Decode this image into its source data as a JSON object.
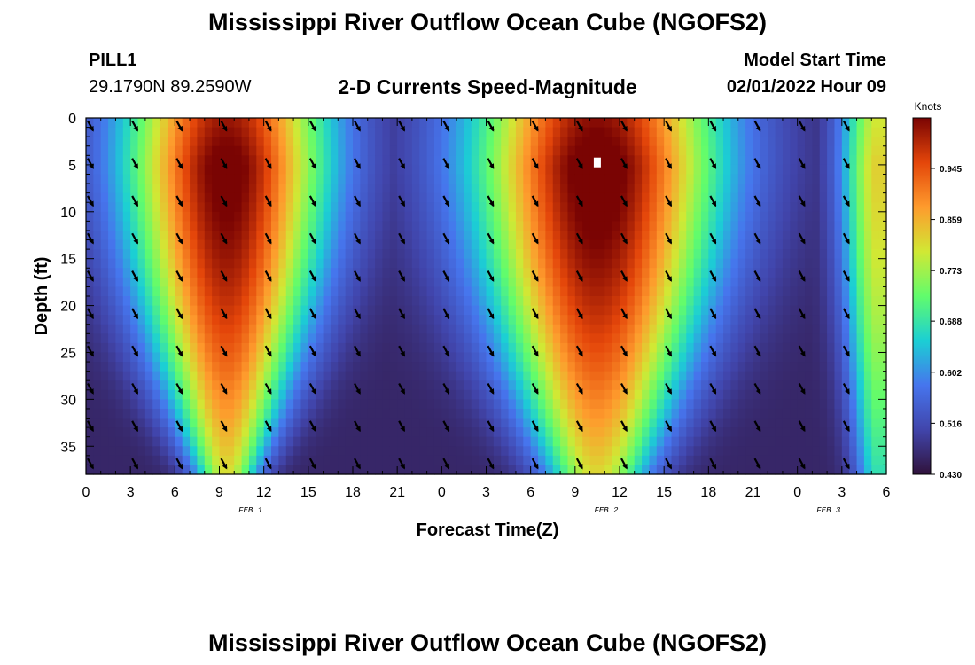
{
  "header": {
    "title": "Mississippi River Outflow Ocean Cube (NGOFS2)",
    "station": "PILL1",
    "coords": "29.1790N  89.2590W",
    "subtitle": "2-D Currents Speed-Magnitude",
    "model_start_label": "Model Start Time",
    "model_start_value": "02/01/2022 Hour 09"
  },
  "footer": {
    "title": "Mississippi River Outflow Ocean Cube (NGOFS2)"
  },
  "chart_data": {
    "type": "heatmap",
    "xlabel": "Forecast Time(Z)",
    "ylabel": "Depth (ft)",
    "x_tick_labels": [
      "0",
      "3",
      "6",
      "9",
      "12",
      "15",
      "18",
      "21",
      "0",
      "3",
      "6",
      "9",
      "12",
      "15",
      "18",
      "21",
      "0",
      "3",
      "6"
    ],
    "date_labels": [
      {
        "label": "FEB 1",
        "at_tick": 3.7
      },
      {
        "label": "FEB 2",
        "at_tick": 11.7
      },
      {
        "label": "FEB 3",
        "at_tick": 16.7
      }
    ],
    "y_ticks": [
      0,
      5,
      10,
      15,
      20,
      25,
      30,
      35
    ],
    "ylim": [
      38,
      0
    ],
    "xlim_hours": [
      0,
      54
    ],
    "colorbar": {
      "unit_label": "Knots",
      "tick_labels": [
        "0.945",
        "0.859",
        "0.773",
        "0.688",
        "0.602",
        "0.516",
        "0.430"
      ],
      "range": [
        0.43,
        1.03
      ],
      "colormap": [
        "#30123b",
        "#4145ab",
        "#4675ed",
        "#1bcfd4",
        "#61fc6c",
        "#d1e834",
        "#fe9b2d",
        "#e4460a",
        "#7a0403"
      ]
    },
    "speed_model": {
      "min": 0.43,
      "max": 1.03,
      "peaks": [
        {
          "hour": 9.5,
          "amplitude": 0.98,
          "halfwidth_surface": 6.8,
          "halfwidth_bottom": 2.2
        },
        {
          "hour": 34.5,
          "amplitude": 1.0,
          "halfwidth_surface": 8.3,
          "halfwidth_bottom": 3.5
        },
        {
          "hour": 53.5,
          "amplitude": 0.62,
          "halfwidth_surface": 2.6,
          "halfwidth_bottom": 1.6
        }
      ],
      "depth_profile": {
        "surface_factor": 0.93,
        "max_depth_ft": 5,
        "bottom_factor": 0.6
      },
      "max_marker": {
        "hour": 34.5,
        "depth": 4.7
      }
    },
    "vector_grid": {
      "hours": [
        0,
        3,
        6,
        9,
        12,
        15,
        18,
        21,
        24,
        27,
        30,
        33,
        36,
        39,
        42,
        45,
        48,
        51
      ],
      "depths": [
        0.5,
        4.5,
        8.5,
        12.5,
        16.5,
        20.5,
        24.5,
        28.5,
        32.5,
        36.5
      ],
      "direction": "southeast"
    }
  }
}
